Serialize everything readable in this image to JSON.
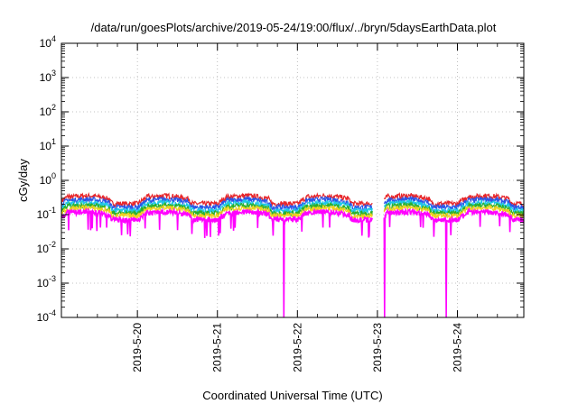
{
  "chart_data": {
    "type": "line",
    "title": "/data/run/goesPlots/archive/2019-05-24/19:00/flux/../bryn/5daysEarthData.plot",
    "xlabel": "Coordinated Universal Time (UTC)",
    "ylabel": "cGy/day",
    "yscale": "log",
    "ylim": [
      0.0001,
      10000
    ],
    "xlim_days": [
      19.05,
      24.83
    ],
    "grid": true,
    "y_ticks": [
      {
        "base": "10",
        "exp": "-4",
        "value": 0.0001
      },
      {
        "base": "10",
        "exp": "-3",
        "value": 0.001
      },
      {
        "base": "10",
        "exp": "-2",
        "value": 0.01
      },
      {
        "base": "10",
        "exp": "-1",
        "value": 0.1
      },
      {
        "base": "10",
        "exp": "0",
        "value": 1
      },
      {
        "base": "10",
        "exp": "1",
        "value": 10
      },
      {
        "base": "10",
        "exp": "2",
        "value": 100
      },
      {
        "base": "10",
        "exp": "3",
        "value": 1000
      },
      {
        "base": "10",
        "exp": "4",
        "value": 10000
      }
    ],
    "x_ticks": [
      {
        "label": "2019-5-20",
        "day": 20
      },
      {
        "label": "2019-5-21",
        "day": 21
      },
      {
        "label": "2019-5-22",
        "day": 22
      },
      {
        "label": "2019-5-23",
        "day": 23
      },
      {
        "label": "2019-5-24",
        "day": 24
      }
    ],
    "series": [
      {
        "color": "#e8262a",
        "level": 0.38
      },
      {
        "color": "#2a55e8",
        "level": 0.3
      },
      {
        "color": "#1ec8e8",
        "level": 0.24
      },
      {
        "color": "#2ab02a",
        "level": 0.2
      },
      {
        "color": "#f0d020",
        "level": 0.17
      },
      {
        "color": "#ff00ff",
        "level": 0.13
      }
    ],
    "data_gaps_days": [
      [
        22.94,
        23.08
      ]
    ],
    "dropouts_days": [
      21.83,
      22.98,
      23.09,
      23.86
    ]
  }
}
